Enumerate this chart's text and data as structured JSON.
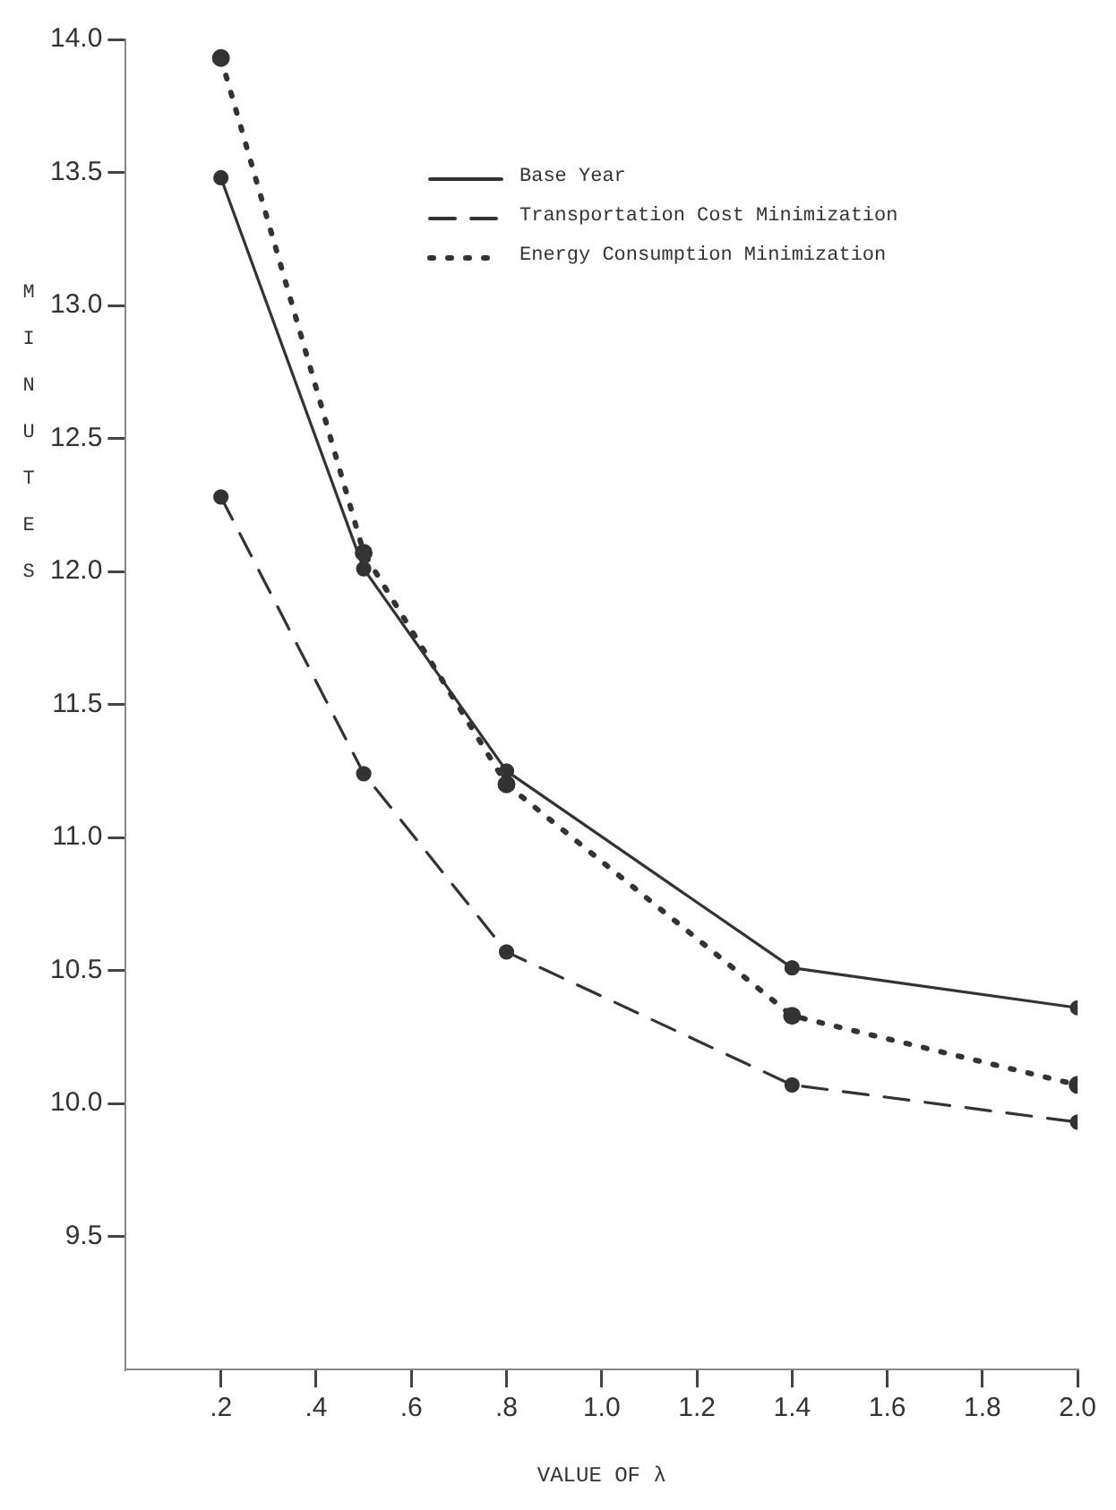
{
  "chart_data": {
    "type": "line",
    "xlabel": "VALUE OF λ",
    "ylabel": "MINUTES",
    "x": [
      0.2,
      0.5,
      0.8,
      1.4,
      2.0
    ],
    "series": [
      {
        "name": "Base Year",
        "color": "#333333",
        "line_style": "solid",
        "values": [
          13.48,
          12.01,
          11.25,
          10.51,
          10.36
        ]
      },
      {
        "name": "Transportation Cost Minimization",
        "color": "#333333",
        "line_style": "dashed",
        "values": [
          12.28,
          11.24,
          10.57,
          10.07,
          9.93
        ]
      },
      {
        "name": "Energy Consumption Minimization",
        "color": "#333333",
        "line_style": "dotted",
        "values": [
          13.93,
          12.07,
          11.2,
          10.33,
          10.07
        ]
      }
    ],
    "xlim": [
      0,
      2.0
    ],
    "xticks": [
      {
        "value": 0.2,
        "label": ".2"
      },
      {
        "value": 0.4,
        "label": ".4"
      },
      {
        "value": 0.6,
        "label": ".6"
      },
      {
        "value": 0.8,
        "label": ".8"
      },
      {
        "value": 1.0,
        "label": "1.0"
      },
      {
        "value": 1.2,
        "label": "1.2"
      },
      {
        "value": 1.4,
        "label": "1.4"
      },
      {
        "value": 1.6,
        "label": "1.6"
      },
      {
        "value": 1.8,
        "label": "1.8"
      },
      {
        "value": 2.0,
        "label": "2.0"
      }
    ],
    "ylim": [
      9.0,
      14.0
    ],
    "yticks": [
      {
        "value": 9.5,
        "label": "9.5"
      },
      {
        "value": 10.0,
        "label": "10.0"
      },
      {
        "value": 10.5,
        "label": "10.5"
      },
      {
        "value": 11.0,
        "label": "11.0"
      },
      {
        "value": 11.5,
        "label": "11.5"
      },
      {
        "value": 12.0,
        "label": "12.0"
      },
      {
        "value": 12.5,
        "label": "12.5"
      },
      {
        "value": 13.0,
        "label": "13.0"
      },
      {
        "value": 13.5,
        "label": "13.5"
      },
      {
        "value": 14.0,
        "label": "14.0"
      }
    ],
    "grid": false,
    "legend": "top right",
    "marker": "circle"
  }
}
